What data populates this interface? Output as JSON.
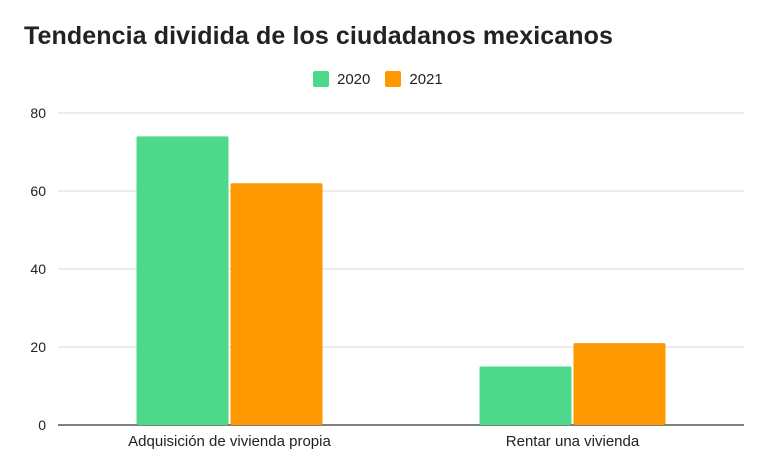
{
  "chart_data": {
    "type": "bar",
    "title": "Tendencia dividida de los ciudadanos mexicanos",
    "categories": [
      "Adquisición de vivienda propia",
      "Rentar una vivienda"
    ],
    "series": [
      {
        "name": "2020",
        "values": [
          74,
          15
        ],
        "color": "#4dd989"
      },
      {
        "name": "2021",
        "values": [
          62,
          21
        ],
        "color": "#ff9900"
      }
    ],
    "xlabel": "",
    "ylabel": "",
    "ylim": [
      0,
      80
    ],
    "yticks": [
      0,
      20,
      40,
      60,
      80
    ],
    "grid": true,
    "legend_position": "top-center"
  }
}
